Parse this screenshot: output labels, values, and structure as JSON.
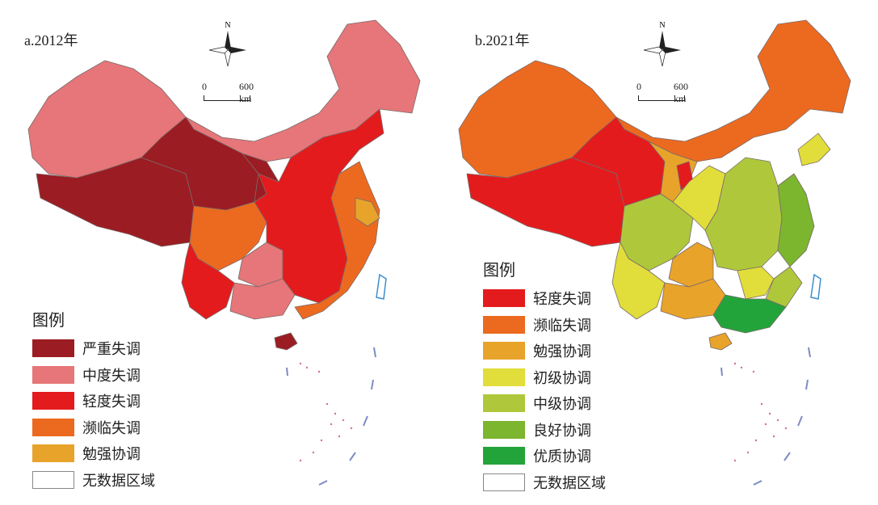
{
  "panels": [
    {
      "title": "a.2012年",
      "north_label": "N",
      "scale": {
        "zero": "0",
        "distance": "600 km"
      },
      "legend": {
        "title": "图例",
        "items": [
          {
            "label": "严重失调",
            "color": "#9b1c22"
          },
          {
            "label": "中度失调",
            "color": "#e67679"
          },
          {
            "label": "轻度失调",
            "color": "#e41b1d"
          },
          {
            "label": "濒临失调",
            "color": "#ec6a1f"
          },
          {
            "label": "勉强协调",
            "color": "#e8a32a"
          },
          {
            "label": "无数据区域",
            "color": "#ffffff"
          }
        ]
      }
    },
    {
      "title": "b.2021年",
      "north_label": "N",
      "scale": {
        "zero": "0",
        "distance": "600 km"
      },
      "legend": {
        "title": "图例",
        "items": [
          {
            "label": "轻度失调",
            "color": "#e41b1d"
          },
          {
            "label": "濒临失调",
            "color": "#ec6a1f"
          },
          {
            "label": "勉强协调",
            "color": "#e8a32a"
          },
          {
            "label": "初级协调",
            "color": "#e1dd3a"
          },
          {
            "label": "中级协调",
            "color": "#afc83b"
          },
          {
            "label": "良好协调",
            "color": "#7cb52e"
          },
          {
            "label": "优质协调",
            "color": "#22a43a"
          },
          {
            "label": "无数据区域",
            "color": "#ffffff"
          }
        ]
      }
    }
  ]
}
